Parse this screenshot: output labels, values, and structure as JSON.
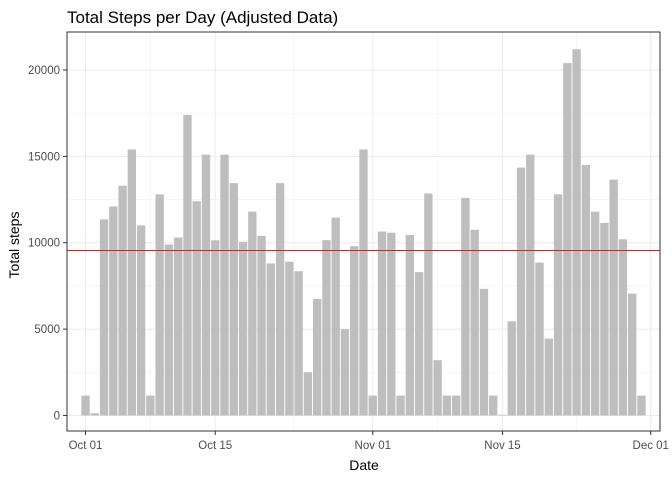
{
  "chart_data": {
    "type": "bar",
    "title": "Total Steps per Day (Adjusted Data)",
    "xlabel": "Date",
    "ylabel": "Total steps",
    "x_date_range": [
      "2012-09-29",
      "2012-12-02"
    ],
    "x_ticks": [
      {
        "date": "2012-10-01",
        "label": "Oct 01"
      },
      {
        "date": "2012-10-15",
        "label": "Oct 15"
      },
      {
        "date": "2012-11-01",
        "label": "Nov 01"
      },
      {
        "date": "2012-11-15",
        "label": "Nov 15"
      },
      {
        "date": "2012-12-01",
        "label": "Dec 01"
      }
    ],
    "ylim": [
      -900,
      22200
    ],
    "y_ticks": [
      0,
      5000,
      10000,
      15000,
      20000
    ],
    "y_tick_labels": [
      "0",
      "5000",
      "10000",
      "15000",
      "20000"
    ],
    "grid": true,
    "bar_color": "#bebebe",
    "reference_line": {
      "y": 9550,
      "color": "#e41a1c"
    },
    "dates": [
      "2012-10-01",
      "2012-10-02",
      "2012-10-03",
      "2012-10-04",
      "2012-10-05",
      "2012-10-06",
      "2012-10-07",
      "2012-10-08",
      "2012-10-09",
      "2012-10-10",
      "2012-10-11",
      "2012-10-12",
      "2012-10-13",
      "2012-10-14",
      "2012-10-15",
      "2012-10-16",
      "2012-10-17",
      "2012-10-18",
      "2012-10-19",
      "2012-10-20",
      "2012-10-21",
      "2012-10-22",
      "2012-10-23",
      "2012-10-24",
      "2012-10-25",
      "2012-10-26",
      "2012-10-27",
      "2012-10-28",
      "2012-10-29",
      "2012-10-30",
      "2012-10-31",
      "2012-11-01",
      "2012-11-02",
      "2012-11-03",
      "2012-11-04",
      "2012-11-05",
      "2012-11-06",
      "2012-11-07",
      "2012-11-08",
      "2012-11-09",
      "2012-11-10",
      "2012-11-11",
      "2012-11-12",
      "2012-11-13",
      "2012-11-14",
      "2012-11-15",
      "2012-11-16",
      "2012-11-17",
      "2012-11-18",
      "2012-11-19",
      "2012-11-20",
      "2012-11-21",
      "2012-11-22",
      "2012-11-23",
      "2012-11-24",
      "2012-11-25",
      "2012-11-26",
      "2012-11-27",
      "2012-11-28",
      "2012-11-29",
      "2012-11-30"
    ],
    "values": [
      1150,
      130,
      11350,
      12100,
      13300,
      15400,
      11000,
      1150,
      12800,
      9900,
      10300,
      17400,
      12400,
      15100,
      10140,
      15100,
      13450,
      10050,
      11800,
      10400,
      8800,
      13450,
      8900,
      8350,
      2500,
      6750,
      10150,
      11450,
      5000,
      9800,
      15400,
      1150,
      10650,
      10580,
      1150,
      10450,
      8300,
      12850,
      3200,
      1150,
      1150,
      12600,
      10750,
      7330,
      1150,
      40,
      5450,
      14350,
      15100,
      8850,
      4450,
      12800,
      20400,
      21200,
      14500,
      11800,
      11150,
      13650,
      10200,
      7050,
      1150
    ]
  }
}
